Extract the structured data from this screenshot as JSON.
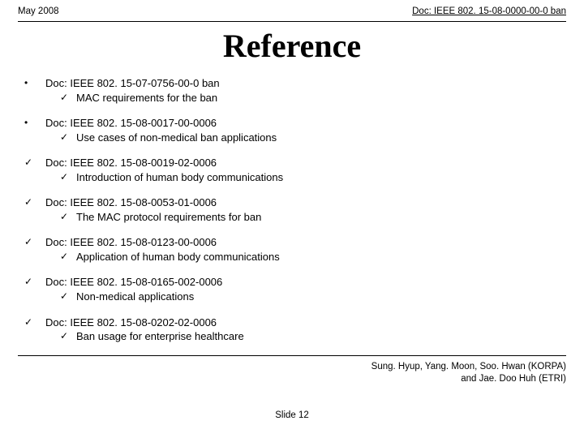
{
  "header": {
    "date": "May 2008",
    "docref": "Doc: IEEE 802. 15-08-0000-00-0 ban"
  },
  "title": "Reference",
  "bullets": {
    "dot": "•",
    "check": "✓"
  },
  "items": [
    {
      "marker": "dot",
      "doc": "Doc: IEEE 802. 15-07-0756-00-0 ban",
      "desc": "MAC requirements for the ban"
    },
    {
      "marker": "dot",
      "doc": "Doc: IEEE 802. 15-08-0017-00-0006",
      "desc": "Use cases of non-medical ban applications"
    },
    {
      "marker": "check",
      "doc": "Doc: IEEE 802. 15-08-0019-02-0006",
      "desc": "Introduction of human body communications"
    },
    {
      "marker": "check",
      "doc": "Doc: IEEE 802. 15-08-0053-01-0006",
      "desc": "The MAC protocol requirements for ban"
    },
    {
      "marker": "check",
      "doc": "Doc: IEEE 802. 15-08-0123-00-0006",
      "desc": "Application of human body communications"
    },
    {
      "marker": "check",
      "doc": "Doc: IEEE 802. 15-08-0165-002-0006",
      "desc": "Non-medical applications"
    },
    {
      "marker": "check",
      "doc": "Doc: IEEE 802. 15-08-0202-02-0006",
      "desc": "Ban usage for enterprise healthcare"
    }
  ],
  "footer": {
    "slide": "Slide 12",
    "authors_line1": "Sung. Hyup, Yang. Moon, Soo. Hwan (KORPA)",
    "authors_line2": "and Jae. Doo Huh (ETRI)"
  },
  "colors": {
    "text": "#000000",
    "background": "#ffffff",
    "rule": "#000000"
  }
}
